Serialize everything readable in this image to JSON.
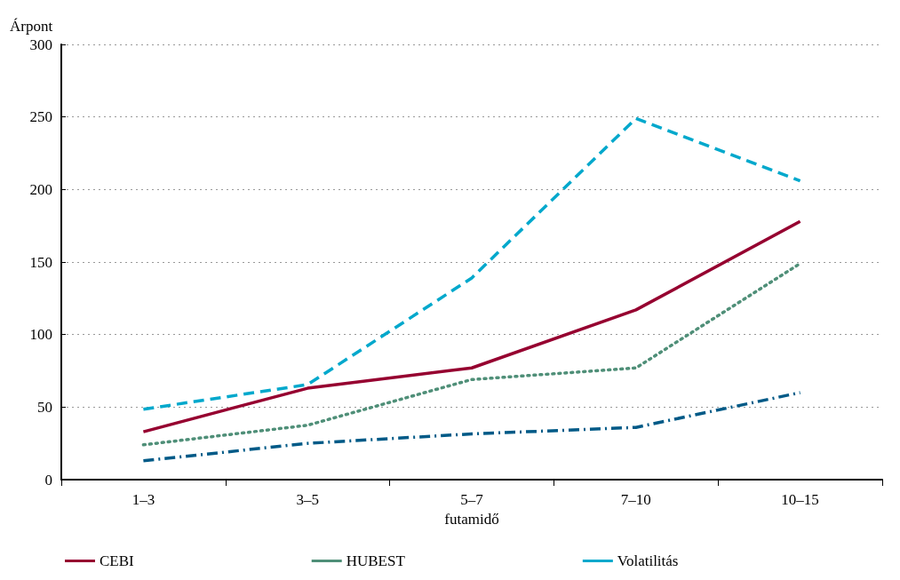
{
  "chart_data": {
    "type": "line",
    "ylabel": "Árpont",
    "xlabel": "futamidő",
    "categories": [
      "1–3",
      "3–5",
      "5–7",
      "7–10",
      "10–15"
    ],
    "ylim": [
      0,
      300
    ],
    "yticks": [
      0,
      50,
      100,
      150,
      200,
      250,
      300
    ],
    "grid": "y",
    "legend": "bottom",
    "marker": "none",
    "series": [
      {
        "name": "CEBI",
        "color": "#960030",
        "line_style": "solid",
        "values": [
          33,
          63,
          77,
          117,
          178
        ]
      },
      {
        "name": "HUBEST",
        "color": "#4f8f78",
        "line_style": "dotted",
        "values": [
          24,
          37.5,
          69,
          77,
          149
        ]
      },
      {
        "color": "#005a87",
        "line_style": "dashdot",
        "values": [
          13,
          25,
          31.5,
          36,
          60
        ]
      },
      {
        "name": "Volatilitás",
        "color": "#00a8cc",
        "line_style": "dashed",
        "values": [
          48.5,
          65.5,
          139,
          249,
          206
        ]
      }
    ]
  }
}
